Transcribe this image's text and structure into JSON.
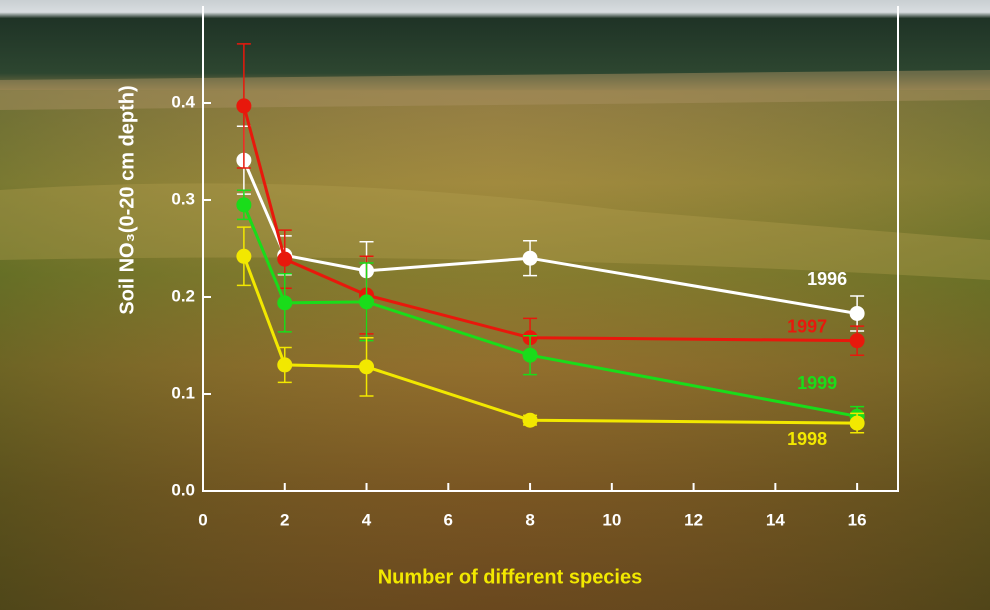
{
  "chart_data": {
    "type": "line",
    "xlabel": "Number of different species",
    "ylabel": "Soil NO₃(0-20 cm depth)",
    "xlim": [
      0,
      17
    ],
    "xticks": [
      0,
      2,
      4,
      6,
      8,
      10,
      12,
      14,
      16
    ],
    "ylim": [
      0,
      0.5
    ],
    "yticks": [
      {
        "value": 0,
        "label": "0.0"
      },
      0.1,
      0.2,
      0.3,
      0.4
    ],
    "x": [
      1,
      2,
      4,
      8,
      16
    ],
    "series": [
      {
        "name": "1996",
        "color": "#ffffff",
        "values": [
          0.341,
          0.243,
          0.227,
          0.24,
          0.183
        ],
        "errors": [
          0.035,
          0.02,
          0.03,
          0.018,
          0.018
        ]
      },
      {
        "name": "1997",
        "color": "#e8180c",
        "values": [
          0.397,
          0.239,
          0.202,
          0.158,
          0.155
        ],
        "errors": [
          0.064,
          0.03,
          0.04,
          0.02,
          0.015
        ]
      },
      {
        "name": "1999",
        "color": "#1adc1a",
        "values": [
          0.295,
          0.194,
          0.195,
          0.14,
          0.077
        ],
        "errors": [
          0.015,
          0.03,
          0.04,
          0.02,
          0.01
        ]
      },
      {
        "name": "1998",
        "color": "#f2e800",
        "values": [
          0.242,
          0.13,
          0.128,
          0.073,
          0.07
        ],
        "errors": [
          0.03,
          0.018,
          0.03,
          0.005,
          0.01
        ]
      }
    ]
  }
}
